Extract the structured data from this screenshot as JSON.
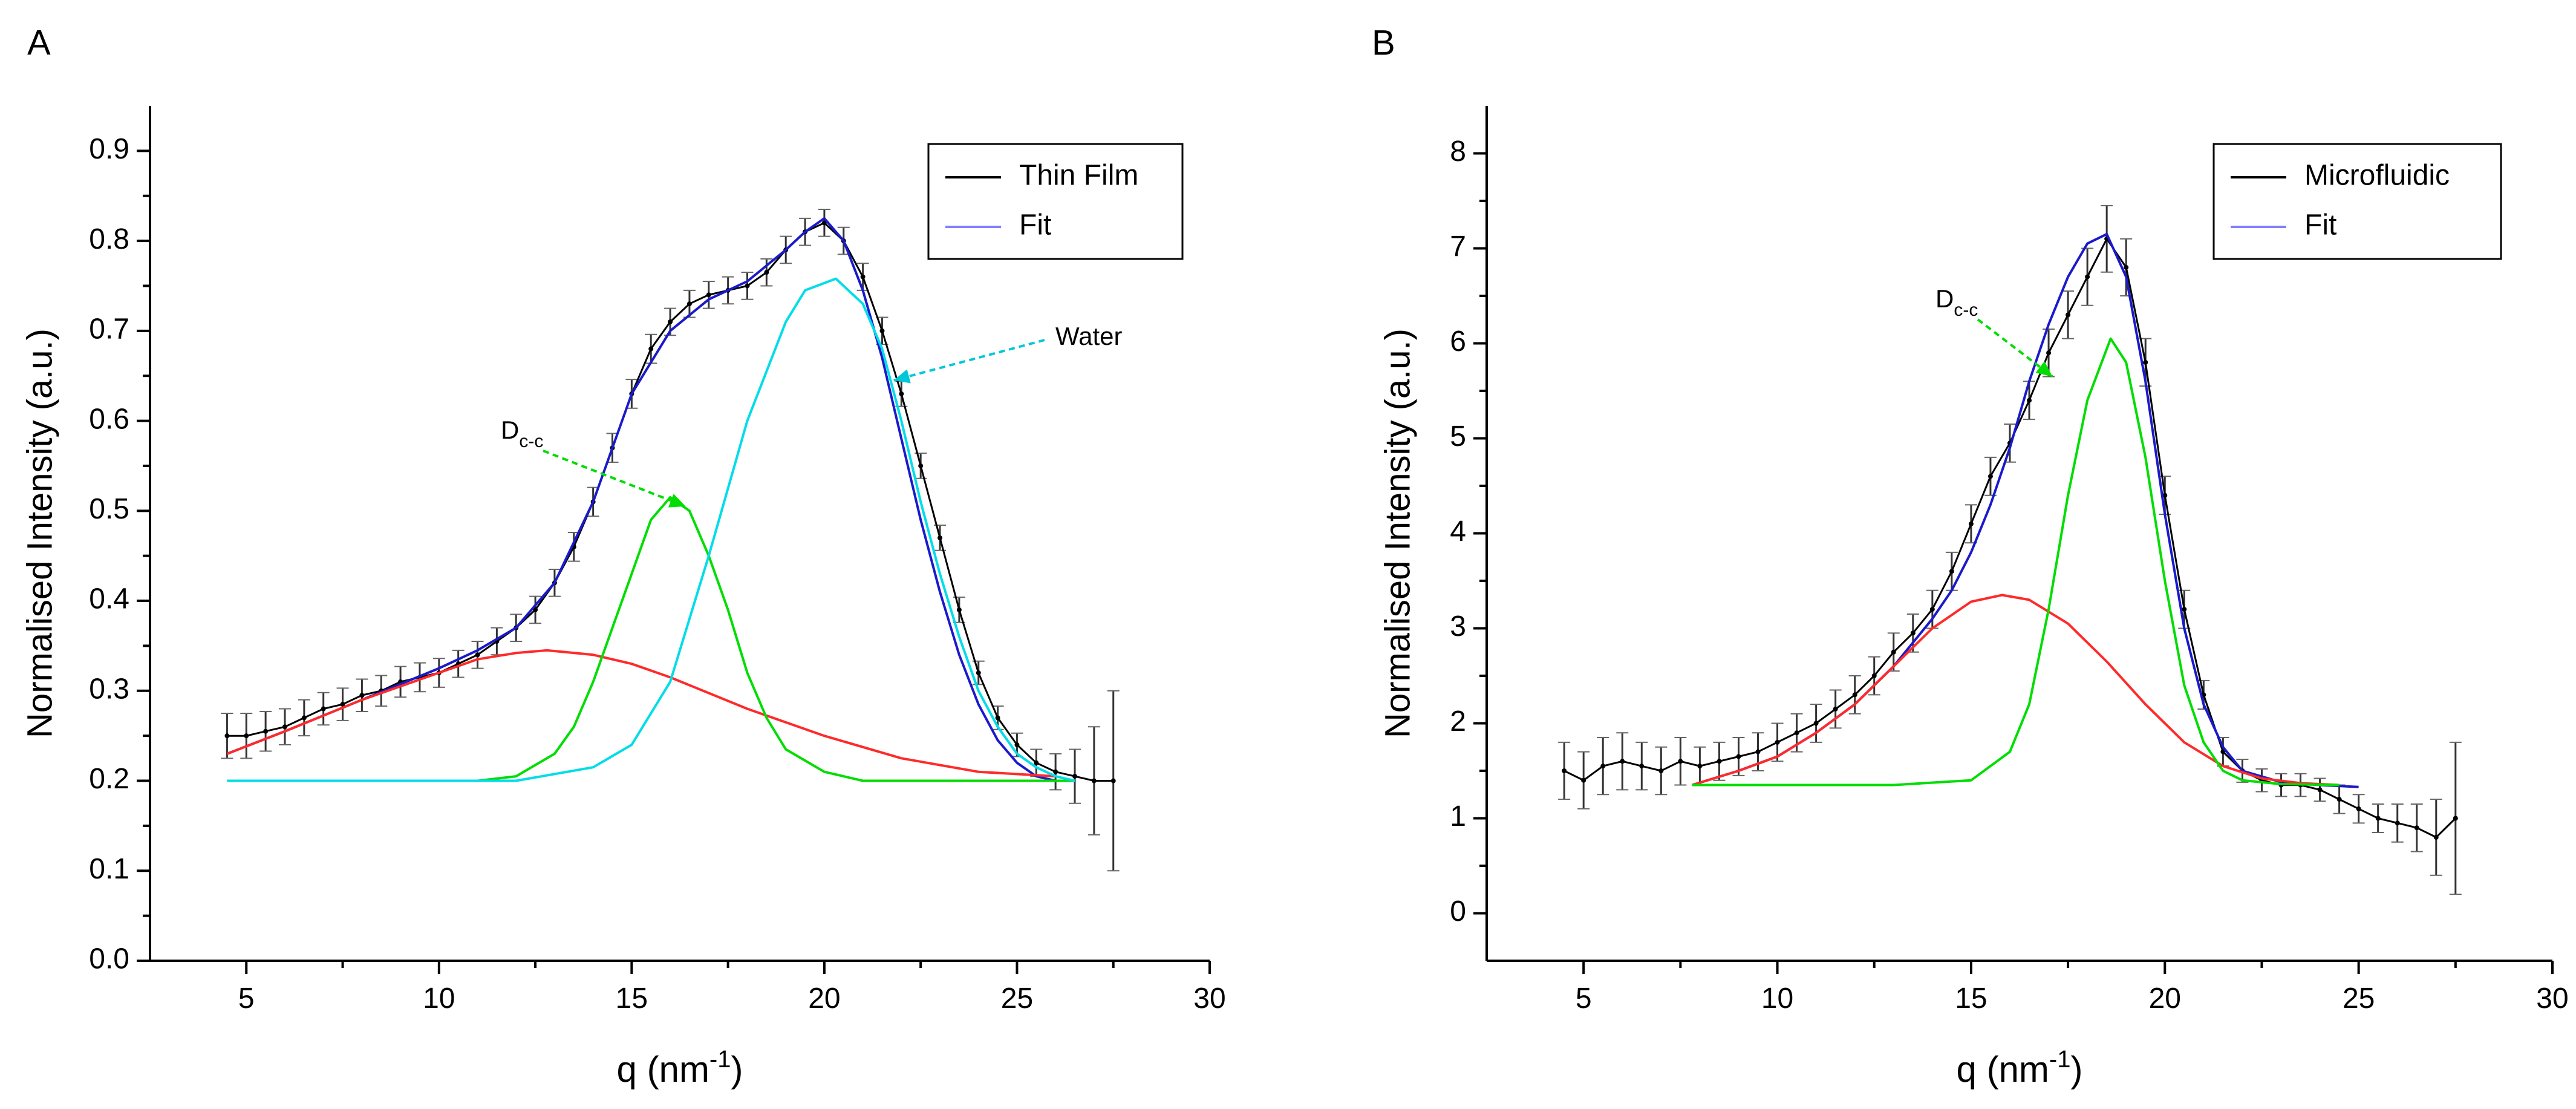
{
  "chart_data": [
    {
      "panel_label": "A",
      "type": "line",
      "xlabel": "q (nm",
      "xlabel_sup": "-1",
      "xlabel_close": ")",
      "ylabel": "Normalised Intensity (a.u.)",
      "xlim": [
        2.5,
        30
      ],
      "ylim": [
        0,
        0.95
      ],
      "x_ticks": [
        5,
        10,
        15,
        20,
        25,
        30
      ],
      "y_ticks": [
        0.0,
        0.1,
        0.2,
        0.3,
        0.4,
        0.5,
        0.6,
        0.7,
        0.8,
        0.9
      ],
      "x_tick_labels": [
        "5",
        "10",
        "15",
        "20",
        "25",
        "30"
      ],
      "y_tick_labels": [
        "0.0",
        "0.1",
        "0.2",
        "0.3",
        "0.4",
        "0.5",
        "0.6",
        "0.7",
        "0.8",
        "0.9"
      ],
      "legend": {
        "placement": "top-right",
        "entries": [
          {
            "label": "Thin Film",
            "color": "#000000"
          },
          {
            "label": "Fit",
            "color": "#8080ff"
          }
        ]
      },
      "annotations": [
        {
          "text": "Water",
          "color": "#00c8d8",
          "target": [
            21.8,
            0.645
          ]
        },
        {
          "text": "D",
          "subscript": "c-c",
          "color": "#00dd00",
          "target": [
            16.4,
            0.505
          ]
        }
      ],
      "series": [
        {
          "name": "Thin Film",
          "kind": "data_with_error",
          "color": "#000000",
          "x": [
            4.5,
            5.0,
            5.5,
            6.0,
            6.5,
            7.0,
            7.5,
            8.0,
            8.5,
            9.0,
            9.5,
            10.0,
            10.5,
            11.0,
            11.5,
            12.0,
            12.5,
            13.0,
            13.5,
            14.0,
            14.5,
            15.0,
            15.5,
            16.0,
            16.5,
            17.0,
            17.5,
            18.0,
            18.5,
            19.0,
            19.5,
            20.0,
            20.5,
            21.0,
            21.5,
            22.0,
            22.5,
            23.0,
            23.5,
            24.0,
            24.5,
            25.0,
            25.5,
            26.0,
            26.5,
            27.0,
            27.5
          ],
          "y": [
            0.25,
            0.25,
            0.255,
            0.26,
            0.27,
            0.28,
            0.285,
            0.295,
            0.3,
            0.31,
            0.315,
            0.32,
            0.33,
            0.34,
            0.355,
            0.37,
            0.39,
            0.42,
            0.46,
            0.51,
            0.57,
            0.63,
            0.68,
            0.71,
            0.73,
            0.74,
            0.745,
            0.75,
            0.765,
            0.79,
            0.81,
            0.82,
            0.8,
            0.76,
            0.7,
            0.63,
            0.55,
            0.47,
            0.39,
            0.32,
            0.27,
            0.24,
            0.22,
            0.21,
            0.205,
            0.2,
            0.2
          ],
          "error": [
            0.025,
            0.025,
            0.022,
            0.02,
            0.02,
            0.018,
            0.018,
            0.018,
            0.017,
            0.017,
            0.016,
            0.016,
            0.015,
            0.015,
            0.015,
            0.015,
            0.015,
            0.015,
            0.016,
            0.016,
            0.016,
            0.016,
            0.016,
            0.015,
            0.015,
            0.015,
            0.015,
            0.015,
            0.015,
            0.015,
            0.015,
            0.015,
            0.015,
            0.015,
            0.015,
            0.014,
            0.014,
            0.014,
            0.014,
            0.013,
            0.013,
            0.013,
            0.015,
            0.02,
            0.03,
            0.06,
            0.1
          ]
        },
        {
          "name": "Fit",
          "kind": "line",
          "color": "#1a1acc",
          "x": [
            4.5,
            6.0,
            8.0,
            10.0,
            11.0,
            12.0,
            13.0,
            14.0,
            15.0,
            16.0,
            17.0,
            18.0,
            19.0,
            19.5,
            20.0,
            20.5,
            21.0,
            21.5,
            22.0,
            22.5,
            23.0,
            23.5,
            24.0,
            24.5,
            25.0,
            25.5,
            26.0
          ],
          "y": [
            0.23,
            0.255,
            0.29,
            0.325,
            0.345,
            0.37,
            0.42,
            0.51,
            0.63,
            0.7,
            0.735,
            0.755,
            0.79,
            0.81,
            0.825,
            0.8,
            0.745,
            0.67,
            0.58,
            0.49,
            0.41,
            0.34,
            0.285,
            0.245,
            0.22,
            0.205,
            0.2
          ]
        },
        {
          "name": "",
          "kind": "line",
          "color": "#ff2a2a",
          "x": [
            4.5,
            6.0,
            8.0,
            10.0,
            11.0,
            12.0,
            12.8,
            14.0,
            15.0,
            16.0,
            18.0,
            20.0,
            22.0,
            24.0,
            26.0
          ],
          "y": [
            0.23,
            0.255,
            0.29,
            0.32,
            0.335,
            0.342,
            0.345,
            0.34,
            0.33,
            0.315,
            0.28,
            0.25,
            0.225,
            0.21,
            0.205
          ]
        },
        {
          "name": "",
          "kind": "line",
          "color": "#00dd00",
          "x": [
            4.5,
            11.0,
            12.0,
            13.0,
            13.5,
            14.0,
            14.5,
            15.0,
            15.5,
            16.0,
            16.5,
            17.0,
            17.5,
            18.0,
            18.5,
            19.0,
            20.0,
            21.0,
            22.0,
            26.5
          ],
          "y": [
            0.2,
            0.2,
            0.205,
            0.23,
            0.26,
            0.31,
            0.37,
            0.43,
            0.49,
            0.515,
            0.5,
            0.45,
            0.39,
            0.32,
            0.27,
            0.235,
            0.21,
            0.2,
            0.2,
            0.2
          ]
        },
        {
          "name": "",
          "kind": "line",
          "color": "#00dde8",
          "x": [
            4.5,
            12.0,
            14.0,
            15.0,
            16.0,
            17.0,
            18.0,
            19.0,
            19.5,
            20.3,
            21.0,
            21.5,
            22.0,
            22.5,
            23.0,
            23.5,
            24.0,
            24.5,
            25.0,
            25.5,
            26.0,
            26.5
          ],
          "y": [
            0.2,
            0.2,
            0.215,
            0.24,
            0.31,
            0.45,
            0.6,
            0.71,
            0.745,
            0.758,
            0.73,
            0.68,
            0.6,
            0.51,
            0.43,
            0.36,
            0.3,
            0.26,
            0.23,
            0.215,
            0.205,
            0.2
          ]
        }
      ]
    },
    {
      "panel_label": "B",
      "type": "line",
      "xlabel": "q (nm",
      "xlabel_sup": "-1",
      "xlabel_close": ")",
      "ylabel": "Normalised Intensity (a.u.)",
      "xlim": [
        2.5,
        30
      ],
      "ylim": [
        -0.5,
        8.5
      ],
      "x_ticks": [
        5,
        10,
        15,
        20,
        25,
        30
      ],
      "y_ticks": [
        0,
        1,
        2,
        3,
        4,
        5,
        6,
        7,
        8
      ],
      "x_tick_labels": [
        "5",
        "10",
        "15",
        "20",
        "25",
        "30"
      ],
      "y_tick_labels": [
        "0",
        "1",
        "2",
        "3",
        "4",
        "5",
        "6",
        "7",
        "8"
      ],
      "legend": {
        "placement": "top-right",
        "entries": [
          {
            "label": "Microfluidic",
            "color": "#000000"
          },
          {
            "label": "Fit",
            "color": "#8080ff"
          }
        ]
      },
      "annotations": [
        {
          "text": "D",
          "subscript": "c-c",
          "color": "#00dd00",
          "target": [
            17.1,
            5.65
          ]
        }
      ],
      "series": [
        {
          "name": "Microfluidic",
          "kind": "data_with_error",
          "color": "#000000",
          "x": [
            4.5,
            5.0,
            5.5,
            6.0,
            6.5,
            7.0,
            7.5,
            8.0,
            8.5,
            9.0,
            9.5,
            10.0,
            10.5,
            11.0,
            11.5,
            12.0,
            12.5,
            13.0,
            13.5,
            14.0,
            14.5,
            15.0,
            15.5,
            16.0,
            16.5,
            17.0,
            17.5,
            18.0,
            18.5,
            19.0,
            19.5,
            20.0,
            20.5,
            21.0,
            21.5,
            22.0,
            22.5,
            23.0,
            23.5,
            24.0,
            24.5,
            25.0,
            25.5,
            26.0,
            26.5,
            27.0,
            27.5
          ],
          "y": [
            1.5,
            1.4,
            1.55,
            1.6,
            1.55,
            1.5,
            1.6,
            1.55,
            1.6,
            1.65,
            1.7,
            1.8,
            1.9,
            2.0,
            2.15,
            2.3,
            2.5,
            2.75,
            2.95,
            3.2,
            3.6,
            4.1,
            4.6,
            4.95,
            5.4,
            5.9,
            6.3,
            6.7,
            7.1,
            6.8,
            5.8,
            4.4,
            3.2,
            2.3,
            1.7,
            1.5,
            1.4,
            1.35,
            1.35,
            1.3,
            1.2,
            1.1,
            1.0,
            0.95,
            0.9,
            0.8,
            1.0
          ],
          "error": [
            0.3,
            0.3,
            0.3,
            0.3,
            0.25,
            0.25,
            0.25,
            0.2,
            0.2,
            0.2,
            0.2,
            0.2,
            0.2,
            0.2,
            0.2,
            0.2,
            0.2,
            0.2,
            0.2,
            0.2,
            0.2,
            0.2,
            0.2,
            0.2,
            0.2,
            0.25,
            0.25,
            0.3,
            0.35,
            0.3,
            0.25,
            0.2,
            0.2,
            0.15,
            0.15,
            0.12,
            0.12,
            0.12,
            0.12,
            0.12,
            0.15,
            0.15,
            0.15,
            0.2,
            0.25,
            0.4,
            0.8
          ]
        },
        {
          "name": "Fit",
          "kind": "line",
          "color": "#1a1acc",
          "x": [
            7.8,
            9.0,
            10.0,
            11.0,
            12.0,
            13.0,
            14.0,
            14.5,
            15.0,
            15.5,
            16.0,
            16.5,
            17.0,
            17.5,
            18.0,
            18.5,
            19.0,
            19.5,
            20.0,
            20.5,
            21.0,
            21.5,
            22.0,
            23.0,
            24.0,
            25.0
          ],
          "y": [
            1.35,
            1.5,
            1.65,
            1.9,
            2.2,
            2.6,
            3.1,
            3.4,
            3.8,
            4.3,
            4.9,
            5.6,
            6.2,
            6.7,
            7.05,
            7.15,
            6.7,
            5.6,
            4.2,
            3.0,
            2.2,
            1.75,
            1.5,
            1.38,
            1.35,
            1.33
          ]
        },
        {
          "name": "",
          "kind": "line",
          "color": "#ff2a2a",
          "x": [
            7.8,
            9.0,
            10.0,
            11.0,
            12.0,
            13.0,
            14.0,
            15.0,
            15.8,
            16.5,
            17.5,
            18.5,
            19.5,
            20.5,
            21.5,
            22.5,
            23.5,
            24.5
          ],
          "y": [
            1.35,
            1.5,
            1.65,
            1.9,
            2.2,
            2.6,
            3.0,
            3.28,
            3.35,
            3.3,
            3.05,
            2.65,
            2.2,
            1.8,
            1.55,
            1.42,
            1.37,
            1.35
          ]
        },
        {
          "name": "",
          "kind": "line",
          "color": "#00dd00",
          "x": [
            7.8,
            13.0,
            15.0,
            16.0,
            16.5,
            17.0,
            17.5,
            18.0,
            18.6,
            19.0,
            19.5,
            20.0,
            20.5,
            21.0,
            21.5,
            22.0,
            23.0,
            24.5
          ],
          "y": [
            1.35,
            1.35,
            1.4,
            1.7,
            2.2,
            3.2,
            4.4,
            5.4,
            6.05,
            5.8,
            4.8,
            3.5,
            2.4,
            1.8,
            1.5,
            1.4,
            1.36,
            1.35
          ]
        }
      ]
    }
  ]
}
